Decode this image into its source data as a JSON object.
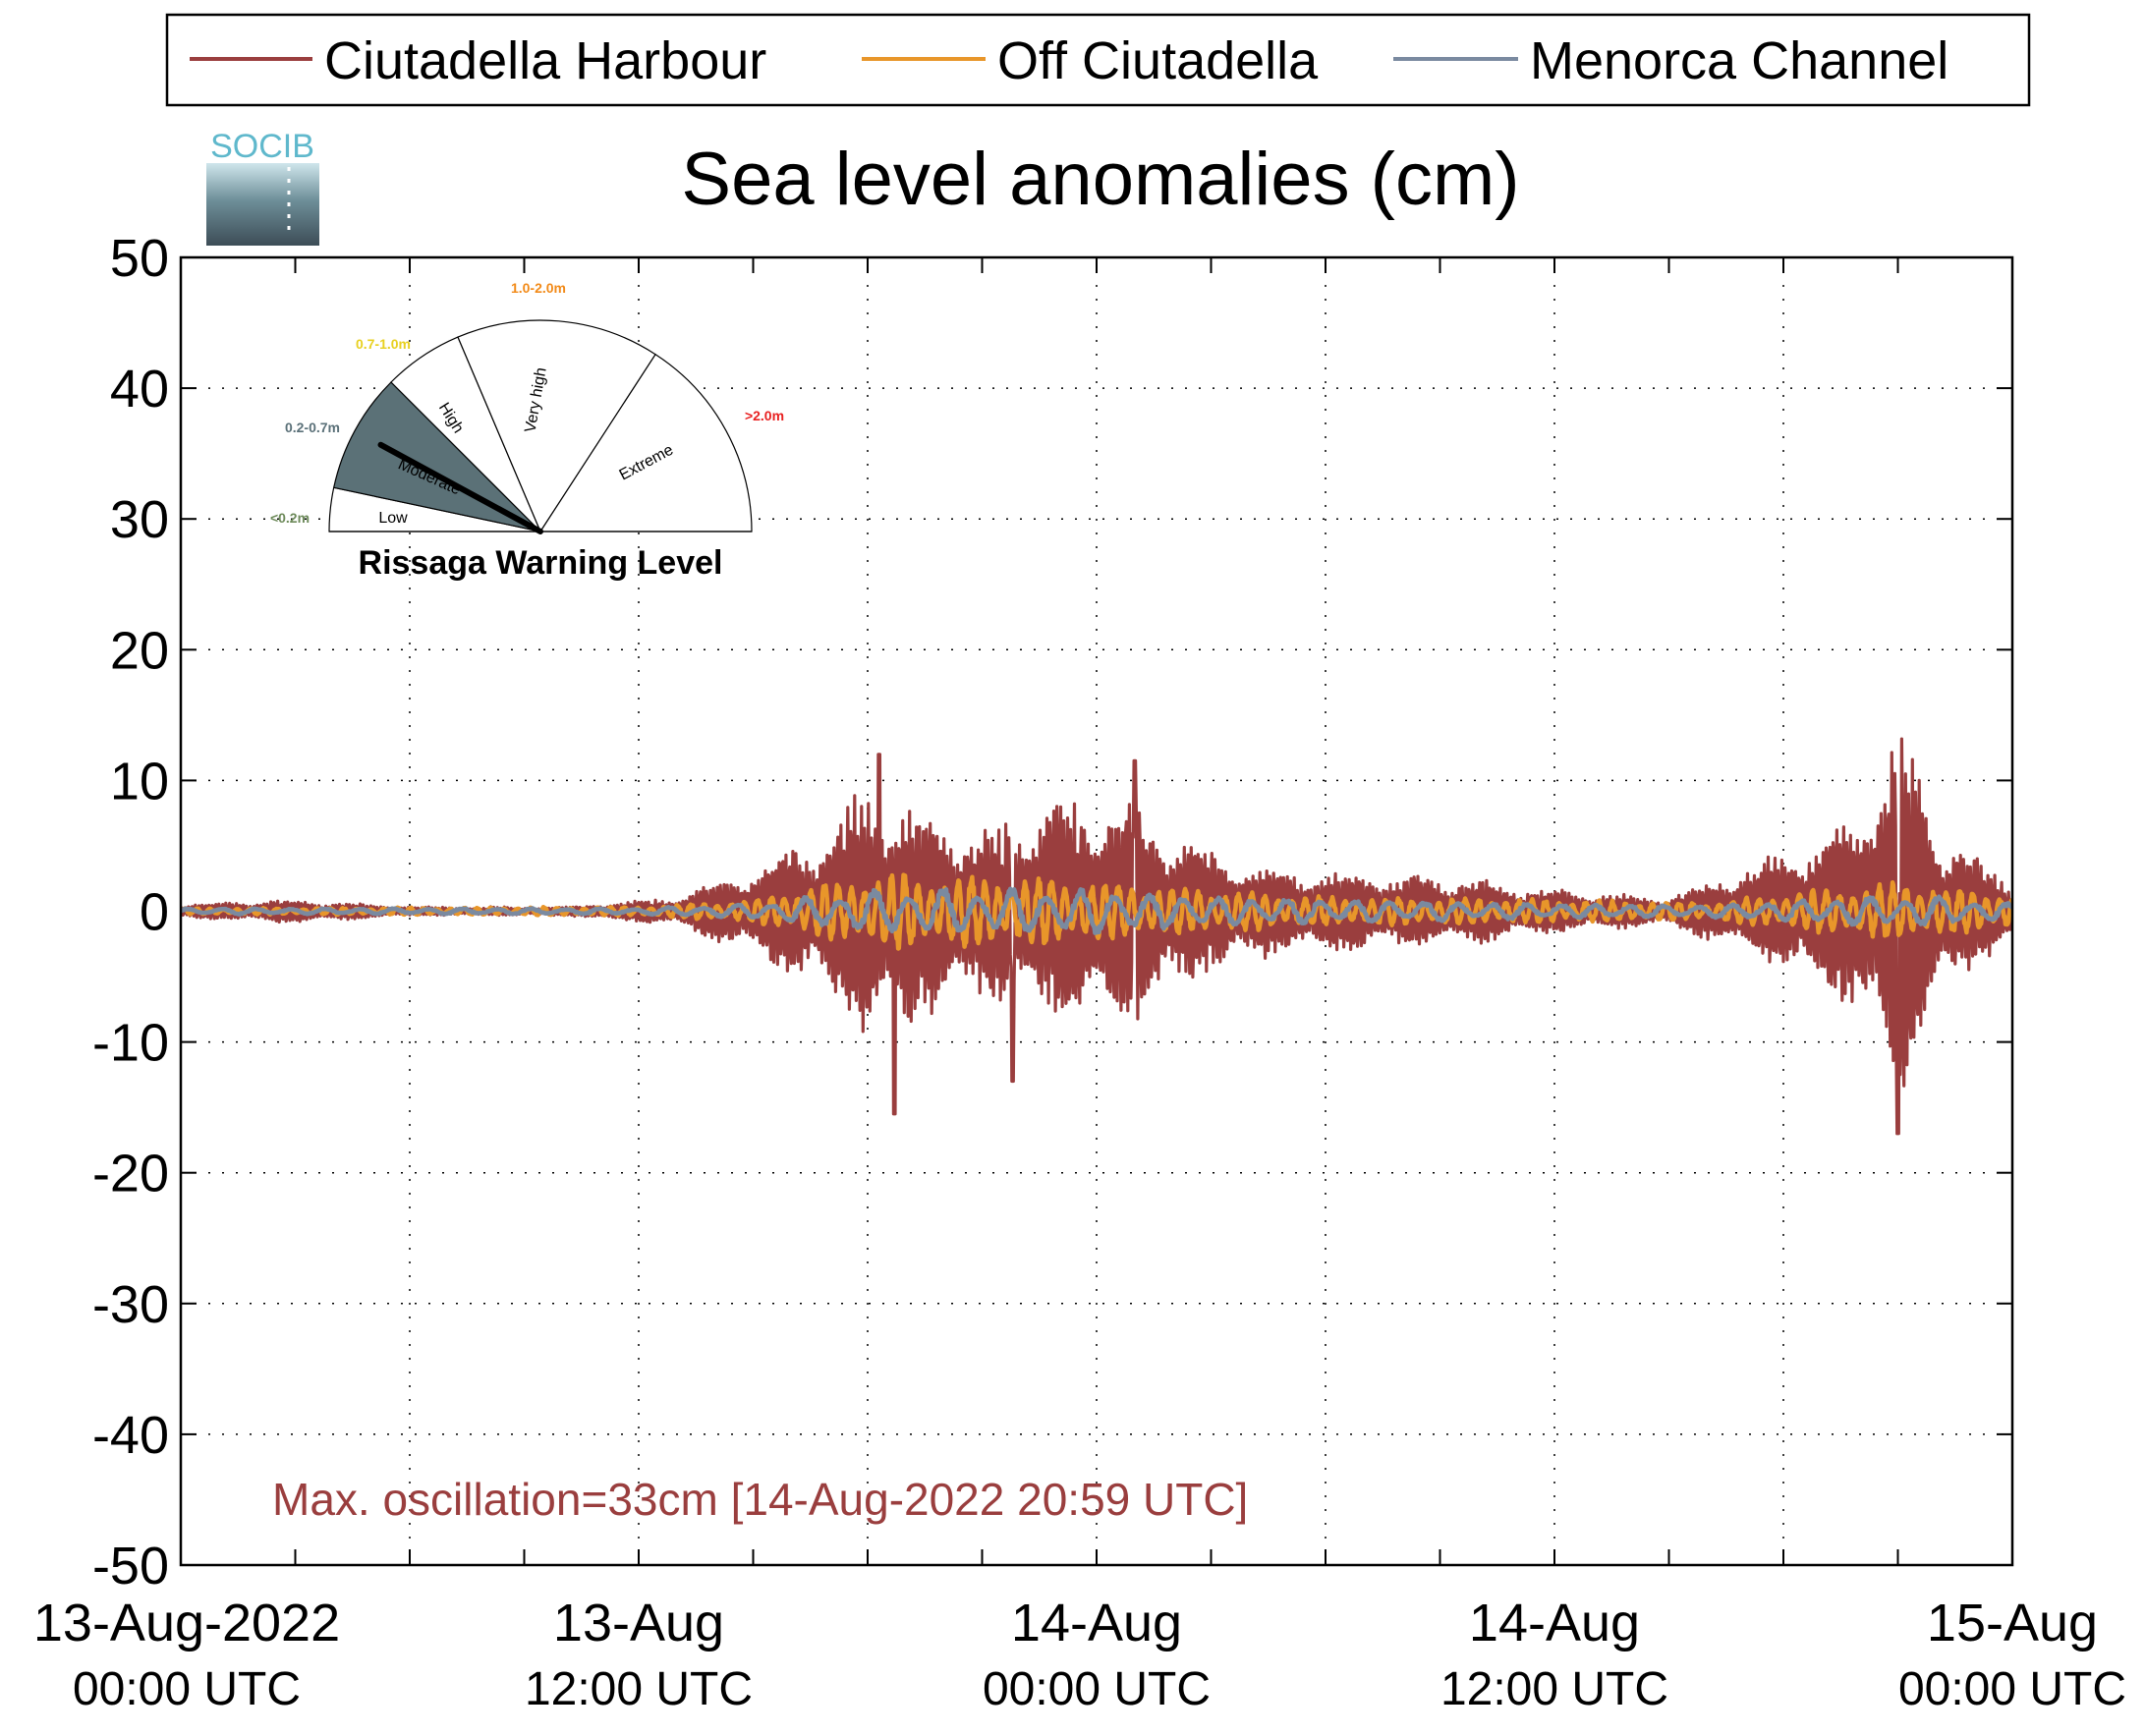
{
  "chart_data": {
    "type": "line",
    "title": "Sea level anomalies (cm)",
    "xlabel": "",
    "ylabel": "",
    "ylim": [
      -50,
      50
    ],
    "yticks": [
      50,
      40,
      30,
      20,
      10,
      0,
      -10,
      -20,
      -30,
      -40,
      -50
    ],
    "xlim": [
      "2022-08-13 00:00",
      "2022-08-15 00:00"
    ],
    "x_unit": "hours since 13-Aug-2022 00:00 UTC",
    "xticks": [
      {
        "hour": 0,
        "line1": "13-Aug-2022",
        "line2": "00:00 UTC"
      },
      {
        "hour": 12,
        "line1": "13-Aug",
        "line2": "12:00 UTC"
      },
      {
        "hour": 24,
        "line1": "14-Aug",
        "line2": "00:00 UTC"
      },
      {
        "hour": 36,
        "line1": "14-Aug",
        "line2": "12:00 UTC"
      },
      {
        "hour": 48,
        "line1": "15-Aug",
        "line2": "00:00 UTC"
      }
    ],
    "grid": true,
    "legend_position": "top",
    "series": [
      {
        "name": "Ciutadella Harbour",
        "color": "#9a3e3e",
        "envelope": [
          [
            0,
            0.5
          ],
          [
            3,
            0.8
          ],
          [
            6,
            0.3
          ],
          [
            10,
            0.3
          ],
          [
            13,
            1.0
          ],
          [
            15,
            3.0
          ],
          [
            17,
            6.0
          ],
          [
            18,
            9.0
          ],
          [
            19,
            8.0
          ],
          [
            21,
            6.0
          ],
          [
            23,
            8.0
          ],
          [
            25,
            7.5
          ],
          [
            27,
            4.0
          ],
          [
            29,
            3.0
          ],
          [
            33,
            2.5
          ],
          [
            36,
            1.5
          ],
          [
            39,
            1.0
          ],
          [
            42,
            4.0
          ],
          [
            44,
            7.0
          ],
          [
            45,
            14.0
          ],
          [
            46,
            6.0
          ],
          [
            48,
            2.0
          ]
        ],
        "peaks": [
          {
            "hour": 18.3,
            "value": 12.0
          },
          {
            "hour": 18.7,
            "value": -15.5
          },
          {
            "hour": 21.8,
            "value": -13.0
          },
          {
            "hour": 25.0,
            "value": 11.5
          },
          {
            "hour": 45.0,
            "value": 16.5
          },
          {
            "hour": 45.0,
            "value": -17.0
          }
        ]
      },
      {
        "name": "Off Ciutadella",
        "color": "#e8962a",
        "envelope": [
          [
            0,
            0.2
          ],
          [
            12,
            0.3
          ],
          [
            15,
            0.8
          ],
          [
            18,
            2.5
          ],
          [
            21,
            2.5
          ],
          [
            24,
            2.0
          ],
          [
            27,
            1.5
          ],
          [
            30,
            1.0
          ],
          [
            36,
            0.8
          ],
          [
            40,
            0.6
          ],
          [
            43,
            1.5
          ],
          [
            45,
            2.0
          ],
          [
            48,
            1.2
          ]
        ]
      },
      {
        "name": "Menorca Channel",
        "color": "#7a8aa0",
        "envelope": [
          [
            0,
            0.2
          ],
          [
            12,
            0.2
          ],
          [
            15,
            0.5
          ],
          [
            18,
            1.5
          ],
          [
            20,
            1.5
          ],
          [
            24,
            1.5
          ],
          [
            27,
            1.0
          ],
          [
            30,
            0.8
          ],
          [
            36,
            0.5
          ],
          [
            40,
            0.4
          ],
          [
            44,
            1.0
          ],
          [
            46,
            1.0
          ],
          [
            48,
            0.5
          ]
        ]
      }
    ],
    "annotation": "Max. oscillation=33cm [14-Aug-2022 20:59 UTC]"
  },
  "logo": {
    "text": "SOCIB"
  },
  "gauge": {
    "title": "Rissaga Warning Level",
    "current_level": "Moderate",
    "segments": [
      {
        "label": "Low",
        "range": "<0.2m",
        "range_color": "#6d8a5a"
      },
      {
        "label": "Moderate",
        "range": "0.2-0.7m",
        "range_color": "#5a7078"
      },
      {
        "label": "High",
        "range": "0.7-1.0m",
        "range_color": "#e8d020"
      },
      {
        "label": "Very high",
        "range": "1.0-2.0m",
        "range_color": "#f28a18"
      },
      {
        "label": "Extreme",
        "range": ">2.0m",
        "range_color": "#e82020"
      }
    ]
  }
}
